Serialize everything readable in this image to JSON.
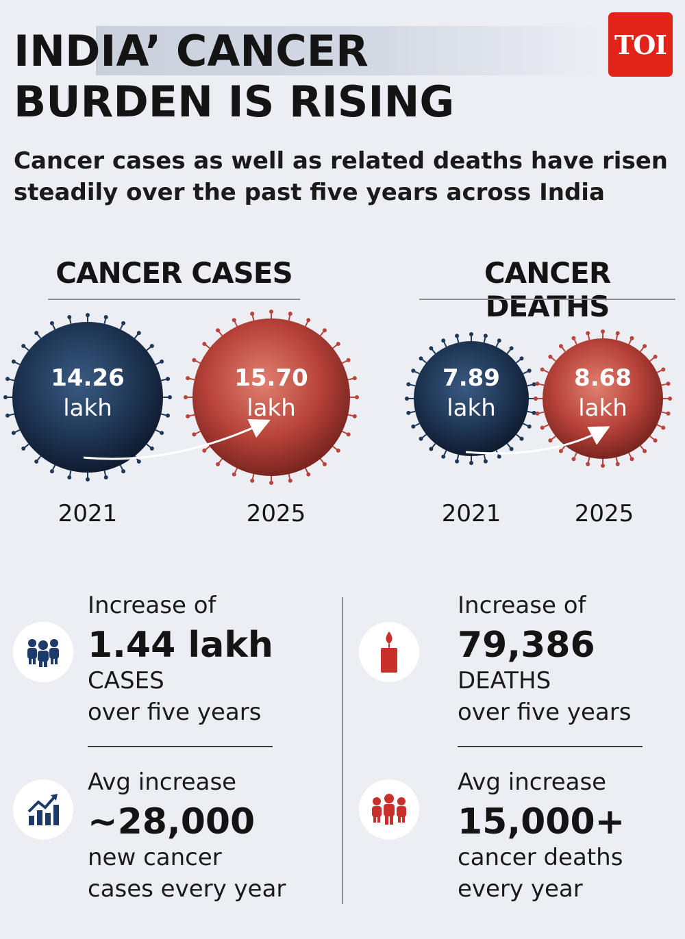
{
  "header": {
    "title_line1": "INDIA’ CANCER",
    "title_line2": "BURDEN IS RISING",
    "logo": "TOI",
    "subtitle": "Cancer cases as well as related deaths have risen steadily over the past five years across India"
  },
  "cases": {
    "heading": "CANCER CASES",
    "from": {
      "value": "14.26",
      "unit": "lakh",
      "year": "2021"
    },
    "to": {
      "value": "15.70",
      "unit": "lakh",
      "year": "2025"
    }
  },
  "deaths": {
    "heading": "CANCER DEATHS",
    "from": {
      "value": "7.89",
      "unit": "lakh",
      "year": "2021"
    },
    "to": {
      "value": "8.68",
      "unit": "lakh",
      "year": "2025"
    }
  },
  "stats": {
    "cases_increase": {
      "pre": "Increase of",
      "value": "1.44 lakh",
      "line1": "CASES",
      "line2": "over five years",
      "icon": "people-group-icon"
    },
    "cases_avg": {
      "pre": "Avg increase",
      "value": "~28,000",
      "line1": "new cancer",
      "line2": "cases every year",
      "icon": "bar-chart-growth-icon"
    },
    "deaths_increase": {
      "pre": "Increase of",
      "value": "79,386",
      "line1": "DEATHS",
      "line2": "over five years",
      "icon": "candle-icon"
    },
    "deaths_avg": {
      "pre": "Avg increase",
      "value": "15,000+",
      "line1": "cancer deaths",
      "line2": "every year",
      "icon": "people-group-icon"
    }
  },
  "colors": {
    "background": "#eceef3",
    "blue_virus": "#1f3756",
    "red_virus": "#b8433a",
    "icon_blue": "#1e3a6b",
    "icon_red": "#c9302c",
    "logo_red": "#e2231a"
  }
}
